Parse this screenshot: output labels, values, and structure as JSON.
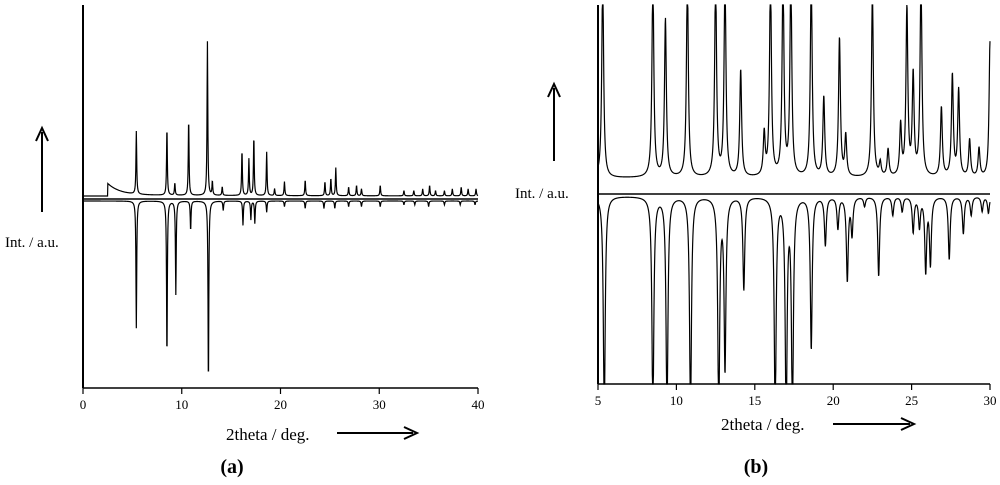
{
  "chart_data": [
    {
      "type": "line",
      "panel_label": "(a)",
      "xlabel": "2theta / deg.",
      "ylabel": "Int. / a.u.",
      "xlim": [
        0,
        40
      ],
      "xticks": [
        0,
        10,
        20,
        30,
        40
      ],
      "grid": false,
      "legend": "none",
      "series": [
        {
          "role": "upper",
          "onset": 2.5,
          "hump": 0.12,
          "peaks": [
            {
              "x": 5.4,
              "y": 0.36
            },
            {
              "x": 8.5,
              "y": 0.39
            },
            {
              "x": 9.3,
              "y": 0.07
            },
            {
              "x": 10.7,
              "y": 0.44
            },
            {
              "x": 12.6,
              "y": 0.88
            },
            {
              "x": 13.1,
              "y": 0.08
            },
            {
              "x": 14.1,
              "y": 0.05
            },
            {
              "x": 16.1,
              "y": 0.26
            },
            {
              "x": 16.8,
              "y": 0.21
            },
            {
              "x": 17.3,
              "y": 0.34
            },
            {
              "x": 18.6,
              "y": 0.25
            },
            {
              "x": 19.4,
              "y": 0.04
            },
            {
              "x": 20.4,
              "y": 0.08
            },
            {
              "x": 22.5,
              "y": 0.09
            },
            {
              "x": 24.5,
              "y": 0.08
            },
            {
              "x": 25.1,
              "y": 0.1
            },
            {
              "x": 25.6,
              "y": 0.16
            },
            {
              "x": 26.9,
              "y": 0.05
            },
            {
              "x": 27.7,
              "y": 0.06
            },
            {
              "x": 28.2,
              "y": 0.04
            },
            {
              "x": 30.1,
              "y": 0.06
            },
            {
              "x": 32.5,
              "y": 0.03
            },
            {
              "x": 33.5,
              "y": 0.03
            },
            {
              "x": 34.4,
              "y": 0.04
            },
            {
              "x": 35.1,
              "y": 0.06
            },
            {
              "x": 35.7,
              "y": 0.03
            },
            {
              "x": 36.6,
              "y": 0.03
            },
            {
              "x": 37.4,
              "y": 0.04
            },
            {
              "x": 38.3,
              "y": 0.05
            },
            {
              "x": 39.0,
              "y": 0.04
            },
            {
              "x": 39.8,
              "y": 0.04
            }
          ]
        },
        {
          "role": "lower",
          "peaks": [
            {
              "x": 5.4,
              "y": 0.68
            },
            {
              "x": 8.5,
              "y": 0.85
            },
            {
              "x": 9.4,
              "y": 0.5
            },
            {
              "x": 10.9,
              "y": 0.16
            },
            {
              "x": 12.7,
              "y": 1.0
            },
            {
              "x": 14.2,
              "y": 0.05
            },
            {
              "x": 16.2,
              "y": 0.13
            },
            {
              "x": 17.0,
              "y": 0.1
            },
            {
              "x": 17.4,
              "y": 0.12
            },
            {
              "x": 18.6,
              "y": 0.06
            },
            {
              "x": 20.4,
              "y": 0.03
            },
            {
              "x": 22.5,
              "y": 0.04
            },
            {
              "x": 24.4,
              "y": 0.04
            },
            {
              "x": 25.5,
              "y": 0.04
            },
            {
              "x": 26.9,
              "y": 0.03
            },
            {
              "x": 28.2,
              "y": 0.03
            },
            {
              "x": 30.1,
              "y": 0.03
            },
            {
              "x": 32.5,
              "y": 0.02
            },
            {
              "x": 33.6,
              "y": 0.02
            },
            {
              "x": 35.0,
              "y": 0.03
            },
            {
              "x": 36.6,
              "y": 0.02
            },
            {
              "x": 38.2,
              "y": 0.02
            },
            {
              "x": 39.7,
              "y": 0.02
            }
          ]
        }
      ]
    },
    {
      "type": "line",
      "panel_label": "(b)",
      "xlabel": "2theta / deg.",
      "ylabel": "Int. / a.u.",
      "xlim": [
        5,
        30
      ],
      "xticks": [
        5,
        10,
        15,
        20,
        25,
        30
      ],
      "grid": false,
      "legend": "none",
      "series": [
        {
          "role": "upper",
          "peaks": [
            {
              "x": 5.3,
              "y": 1.2
            },
            {
              "x": 8.5,
              "y": 1.2
            },
            {
              "x": 9.3,
              "y": 0.93
            },
            {
              "x": 10.7,
              "y": 1.2
            },
            {
              "x": 12.5,
              "y": 1.2
            },
            {
              "x": 13.1,
              "y": 1.2
            },
            {
              "x": 14.1,
              "y": 0.63
            },
            {
              "x": 15.6,
              "y": 0.25
            },
            {
              "x": 16.0,
              "y": 1.2
            },
            {
              "x": 16.8,
              "y": 1.2
            },
            {
              "x": 17.3,
              "y": 1.2
            },
            {
              "x": 18.6,
              "y": 1.2
            },
            {
              "x": 19.4,
              "y": 0.47
            },
            {
              "x": 20.4,
              "y": 0.82
            },
            {
              "x": 20.8,
              "y": 0.24
            },
            {
              "x": 22.5,
              "y": 1.1
            },
            {
              "x": 23.0,
              "y": 0.08
            },
            {
              "x": 23.5,
              "y": 0.16
            },
            {
              "x": 24.3,
              "y": 0.3
            },
            {
              "x": 24.7,
              "y": 1.0
            },
            {
              "x": 25.1,
              "y": 0.59
            },
            {
              "x": 25.6,
              "y": 1.2
            },
            {
              "x": 26.9,
              "y": 0.41
            },
            {
              "x": 27.6,
              "y": 0.6
            },
            {
              "x": 28.0,
              "y": 0.51
            },
            {
              "x": 28.7,
              "y": 0.22
            },
            {
              "x": 29.3,
              "y": 0.17
            },
            {
              "x": 30.0,
              "y": 0.8
            }
          ]
        },
        {
          "role": "lower",
          "peaks": [
            {
              "x": 5.4,
              "y": 1.2
            },
            {
              "x": 8.5,
              "y": 1.2
            },
            {
              "x": 9.4,
              "y": 1.2
            },
            {
              "x": 10.9,
              "y": 1.2
            },
            {
              "x": 12.7,
              "y": 1.2
            },
            {
              "x": 13.1,
              "y": 0.92
            },
            {
              "x": 14.3,
              "y": 0.5
            },
            {
              "x": 16.3,
              "y": 1.2
            },
            {
              "x": 17.0,
              "y": 1.2
            },
            {
              "x": 17.4,
              "y": 1.2
            },
            {
              "x": 18.6,
              "y": 0.82
            },
            {
              "x": 19.5,
              "y": 0.26
            },
            {
              "x": 20.3,
              "y": 0.17
            },
            {
              "x": 20.9,
              "y": 0.45
            },
            {
              "x": 21.2,
              "y": 0.2
            },
            {
              "x": 22.0,
              "y": 0.05
            },
            {
              "x": 22.9,
              "y": 0.43
            },
            {
              "x": 23.8,
              "y": 0.1
            },
            {
              "x": 24.4,
              "y": 0.08
            },
            {
              "x": 25.1,
              "y": 0.19
            },
            {
              "x": 25.5,
              "y": 0.16
            },
            {
              "x": 25.9,
              "y": 0.4
            },
            {
              "x": 26.2,
              "y": 0.36
            },
            {
              "x": 27.4,
              "y": 0.34
            },
            {
              "x": 28.3,
              "y": 0.2
            },
            {
              "x": 28.8,
              "y": 0.1
            },
            {
              "x": 29.5,
              "y": 0.08
            },
            {
              "x": 29.9,
              "y": 0.09
            }
          ]
        }
      ]
    }
  ]
}
